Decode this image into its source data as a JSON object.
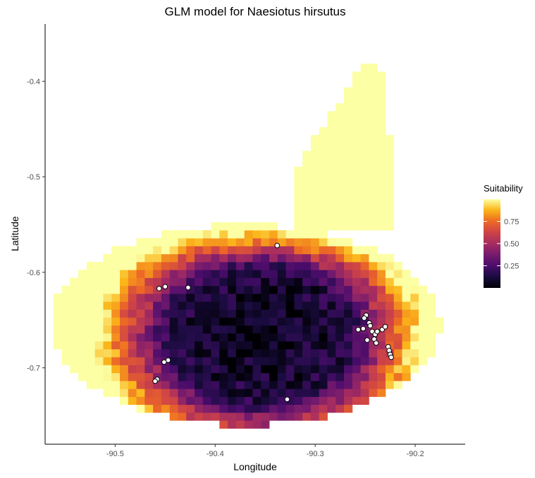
{
  "chart_data": {
    "type": "heatmap",
    "title": "GLM model for Naesiotus hirsutus",
    "xlabel": "Longitude",
    "ylabel": "Latitude",
    "xlim": [
      -90.57,
      -90.15
    ],
    "ylim": [
      -0.78,
      -0.34
    ],
    "x_ticks": [
      {
        "value": -90.5,
        "label": "-90.5"
      },
      {
        "value": -90.4,
        "label": "-90.4"
      },
      {
        "value": -90.3,
        "label": "-90.3"
      },
      {
        "value": -90.2,
        "label": "-90.2"
      }
    ],
    "y_ticks": [
      {
        "value": -0.4,
        "label": "-0.4"
      },
      {
        "value": -0.5,
        "label": "-0.5"
      },
      {
        "value": -0.6,
        "label": "-0.6"
      },
      {
        "value": -0.7,
        "label": "-0.7"
      }
    ],
    "grid": false,
    "colormap": "inferno",
    "cell_size_deg": 0.0083,
    "legend": {
      "title": "Suitability",
      "position": "right",
      "range": [
        0.0,
        1.0
      ],
      "ticks": [
        {
          "value": 0.75,
          "label": "0.75"
        },
        {
          "value": 0.5,
          "label": "0.50"
        },
        {
          "value": 0.25,
          "label": "0.25"
        }
      ]
    },
    "suitability_model": {
      "low_center": [
        -90.355,
        -0.665
      ],
      "low_radii": [
        0.09,
        0.07
      ],
      "band_width": 0.055,
      "island_center": [
        -90.37,
        -0.655
      ],
      "island_radii": [
        0.195,
        0.105
      ],
      "island_bottom_lat": -0.765,
      "north_lobe": {
        "lon_range": [
          -90.325,
          -90.22
        ],
        "lat_top": -0.38
      },
      "high_peak_lat": -0.42
    },
    "occurrences": [
      {
        "lon": -90.338,
        "lat": -0.572
      },
      {
        "lon": -90.456,
        "lat": -0.617
      },
      {
        "lon": -90.45,
        "lat": -0.615
      },
      {
        "lon": -90.427,
        "lat": -0.616
      },
      {
        "lon": -90.447,
        "lat": -0.692
      },
      {
        "lon": -90.451,
        "lat": -0.694
      },
      {
        "lon": -90.458,
        "lat": -0.712
      },
      {
        "lon": -90.46,
        "lat": -0.714
      },
      {
        "lon": -90.328,
        "lat": -0.733
      },
      {
        "lon": -90.249,
        "lat": -0.645
      },
      {
        "lon": -90.251,
        "lat": -0.648
      },
      {
        "lon": -90.246,
        "lat": -0.653
      },
      {
        "lon": -90.252,
        "lat": -0.659
      },
      {
        "lon": -90.257,
        "lat": -0.66
      },
      {
        "lon": -90.245,
        "lat": -0.656
      },
      {
        "lon": -90.243,
        "lat": -0.662
      },
      {
        "lon": -90.24,
        "lat": -0.665
      },
      {
        "lon": -90.238,
        "lat": -0.662
      },
      {
        "lon": -90.233,
        "lat": -0.66
      },
      {
        "lon": -90.23,
        "lat": -0.657
      },
      {
        "lon": -90.248,
        "lat": -0.671
      },
      {
        "lon": -90.241,
        "lat": -0.67
      },
      {
        "lon": -90.239,
        "lat": -0.674
      },
      {
        "lon": -90.227,
        "lat": -0.678
      },
      {
        "lon": -90.226,
        "lat": -0.682
      },
      {
        "lon": -90.225,
        "lat": -0.686
      },
      {
        "lon": -90.224,
        "lat": -0.689
      }
    ]
  }
}
